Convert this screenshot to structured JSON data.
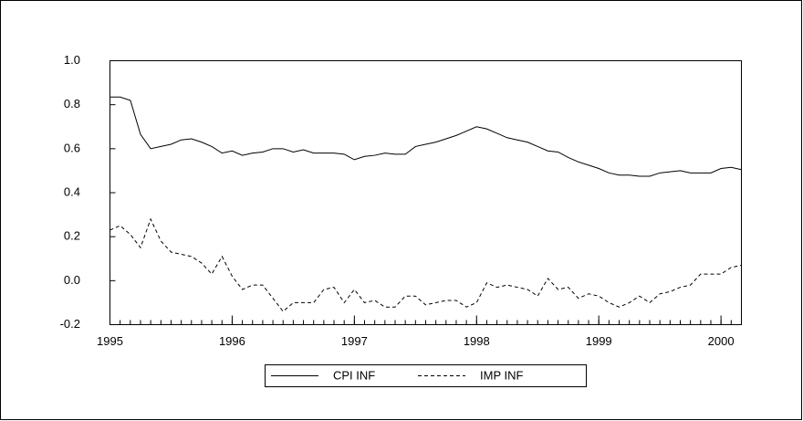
{
  "chart_data": {
    "type": "line",
    "x": [
      1995,
      1995.083,
      1995.167,
      1995.25,
      1995.333,
      1995.417,
      1995.5,
      1995.583,
      1995.667,
      1995.75,
      1995.833,
      1995.917,
      1996,
      1996.083,
      1996.167,
      1996.25,
      1996.333,
      1996.417,
      1996.5,
      1996.583,
      1996.667,
      1996.75,
      1996.833,
      1996.917,
      1997,
      1997.083,
      1997.167,
      1997.25,
      1997.333,
      1997.417,
      1997.5,
      1997.583,
      1997.667,
      1997.75,
      1997.833,
      1997.917,
      1998,
      1998.083,
      1998.167,
      1998.25,
      1998.333,
      1998.417,
      1998.5,
      1998.583,
      1998.667,
      1998.75,
      1998.833,
      1998.917,
      1999,
      1999.083,
      1999.167,
      1999.25,
      1999.333,
      1999.417,
      1999.5,
      1999.583,
      1999.667,
      1999.75,
      1999.833,
      1999.917,
      2000,
      2000.083,
      2000.167
    ],
    "series": [
      {
        "name": "CPI INF",
        "color": "#000000",
        "linestyle": "solid",
        "values": [
          0.835,
          0.835,
          0.82,
          0.665,
          0.6,
          0.61,
          0.62,
          0.64,
          0.645,
          0.63,
          0.61,
          0.58,
          0.59,
          0.57,
          0.58,
          0.585,
          0.6,
          0.6,
          0.585,
          0.595,
          0.58,
          0.58,
          0.58,
          0.575,
          0.55,
          0.565,
          0.57,
          0.58,
          0.575,
          0.575,
          0.61,
          0.62,
          0.63,
          0.645,
          0.66,
          0.68,
          0.7,
          0.69,
          0.67,
          0.65,
          0.64,
          0.63,
          0.61,
          0.59,
          0.585,
          0.56,
          0.54,
          0.525,
          0.51,
          0.49,
          0.48,
          0.48,
          0.475,
          0.475,
          0.49,
          0.495,
          0.5,
          0.49,
          0.49,
          0.49,
          0.51,
          0.515,
          0.505
        ]
      },
      {
        "name": "IMP INF",
        "color": "#000000",
        "linestyle": "dashed",
        "values": [
          0.23,
          0.25,
          0.21,
          0.15,
          0.28,
          0.18,
          0.13,
          0.12,
          0.11,
          0.08,
          0.03,
          0.11,
          0.02,
          -0.04,
          -0.02,
          -0.02,
          -0.08,
          -0.14,
          -0.1,
          -0.1,
          -0.1,
          -0.04,
          -0.03,
          -0.1,
          -0.04,
          -0.1,
          -0.09,
          -0.12,
          -0.12,
          -0.07,
          -0.07,
          -0.11,
          -0.1,
          -0.09,
          -0.09,
          -0.12,
          -0.1,
          -0.01,
          -0.03,
          -0.02,
          -0.03,
          -0.04,
          -0.07,
          0.01,
          -0.04,
          -0.03,
          -0.08,
          -0.06,
          -0.07,
          -0.1,
          -0.12,
          -0.1,
          -0.07,
          -0.1,
          -0.06,
          -0.05,
          -0.03,
          -0.02,
          0.03,
          0.03,
          0.03,
          0.06,
          0.07
        ]
      }
    ],
    "xlim": [
      1995,
      2000.167
    ],
    "xticks": [
      1995,
      1996,
      1997,
      1998,
      1999,
      2000
    ],
    "ylim": [
      -0.2,
      1
    ],
    "yticks": [
      {
        "value": -0.2,
        "label": "-0.2"
      },
      {
        "value": 0,
        "label": "0.0"
      },
      0.2,
      0.4,
      0.6,
      0.8,
      {
        "value": 1,
        "label": "1.0"
      }
    ],
    "grid": false,
    "legend": "bottom"
  }
}
